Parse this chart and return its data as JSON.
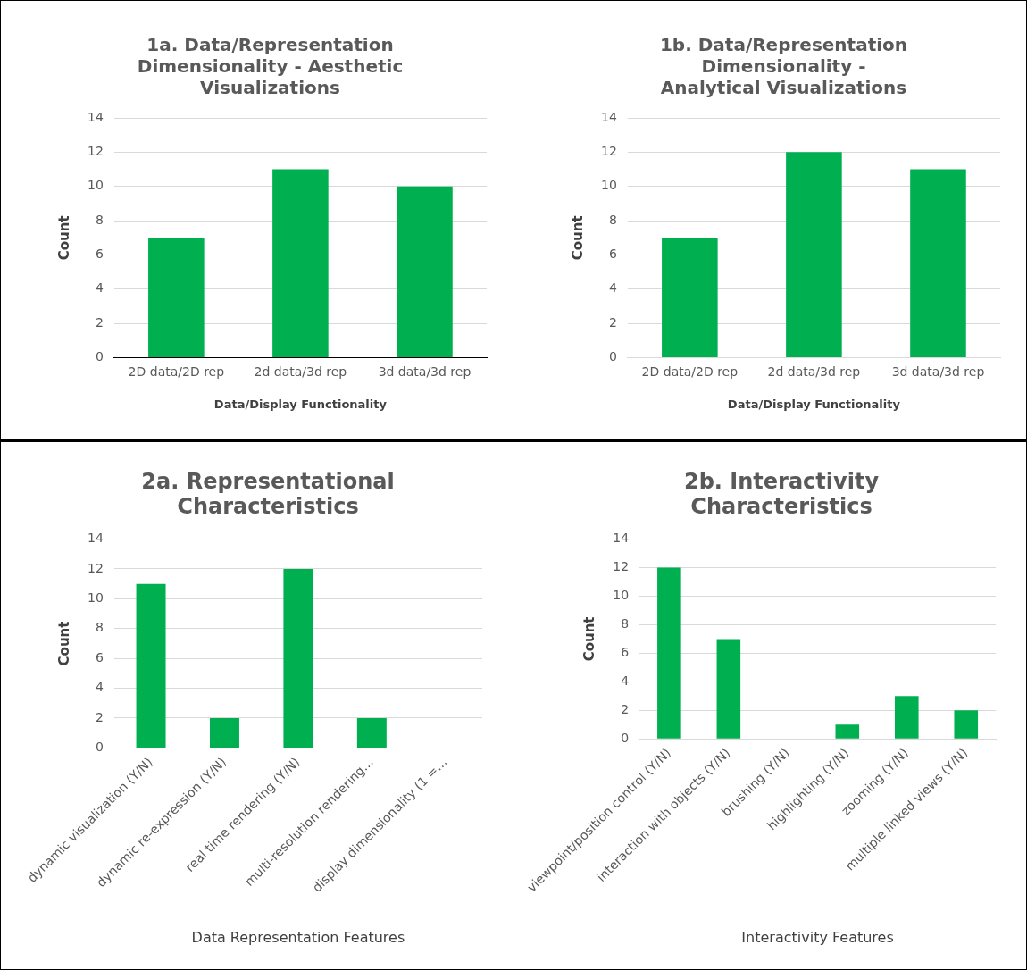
{
  "chart_data": [
    {
      "type": "bar",
      "title": "1a. Data/Representation Dimensionality - Aesthetic Visualizations",
      "xlabel": "Data/Display Functionality",
      "ylabel": "Count",
      "categories": [
        "2D data/2D rep",
        "2d data/3d rep",
        "3d data/3d rep"
      ],
      "values": [
        7,
        11,
        10
      ],
      "color": "#00b050",
      "ylim": [
        0,
        14
      ],
      "yticks": [
        0,
        2,
        4,
        6,
        8,
        10,
        12,
        14
      ],
      "grid": "y",
      "legend": false
    },
    {
      "type": "bar",
      "title": "1b. Data/Representation Dimensionality - Analytical Visualizations",
      "xlabel": "Data/Display Functionality",
      "ylabel": "Count",
      "categories": [
        "2D data/2D rep",
        "2d data/3d rep",
        "3d data/3d rep"
      ],
      "values": [
        7,
        12,
        11
      ],
      "color": "#00b050",
      "ylim": [
        0,
        14
      ],
      "yticks": [
        0,
        2,
        4,
        6,
        8,
        10,
        12,
        14
      ],
      "grid": "y",
      "legend": false
    },
    {
      "type": "bar",
      "title": "2a. Representational Characteristics",
      "xlabel": "Data Representation Features",
      "ylabel": "Count",
      "categories": [
        "dynamic visualization (Y/N)",
        "dynamic re-expression (Y/N)",
        "real time rendering (Y/N)",
        "multi-resolution rendering…",
        "display dimensionality (1 =…"
      ],
      "values": [
        11,
        2,
        12,
        2,
        0
      ],
      "color": "#00b050",
      "ylim": [
        0,
        14
      ],
      "yticks": [
        0,
        2,
        4,
        6,
        8,
        10,
        12,
        14
      ],
      "grid": "y",
      "legend": false
    },
    {
      "type": "bar",
      "title": "2b. Interactivity Characteristics",
      "xlabel": "Interactivity Features",
      "ylabel": "Count",
      "categories": [
        "viewpoint/position control (Y/N)",
        "interaction with objects (Y/N)",
        "brushing (Y/N)",
        "highlighting (Y/N)",
        "zooming (Y/N)",
        "multiple linked views (Y/N)"
      ],
      "values": [
        12,
        7,
        0,
        1,
        3,
        2
      ],
      "color": "#00b050",
      "ylim": [
        0,
        14
      ],
      "yticks": [
        0,
        2,
        4,
        6,
        8,
        10,
        12,
        14
      ],
      "grid": "y",
      "legend": false
    }
  ]
}
